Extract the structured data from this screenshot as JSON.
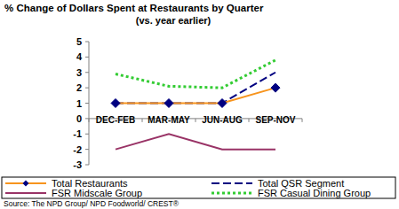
{
  "chart_data": {
    "type": "line",
    "title": "% Change of Dollars Spent at Restaurants by Quarter",
    "subtitle": "(vs. year earlier)",
    "source": "Source: The NPD Group/ NPD Foodworld/ CREST®",
    "categories": [
      "DEC-FEB",
      "MAR-MAY",
      "JUN-AUG",
      "SEP-NOV"
    ],
    "series": [
      {
        "name": "Total Restaurants",
        "color": "#f7941d",
        "values": [
          1,
          1,
          1,
          2
        ],
        "marker": "diamond",
        "line_style": "solid"
      },
      {
        "name": "Total QSR Segment",
        "color": "#000080",
        "values": [
          1,
          1,
          1,
          3
        ],
        "marker": "none",
        "line_style": "dashed"
      },
      {
        "name": "FSR Midscale Group",
        "color": "#993366",
        "values": [
          -2,
          -1,
          -2,
          -2
        ],
        "marker": "none",
        "line_style": "solid"
      },
      {
        "name": "FSR Casual Dining Group",
        "color": "#33cc33",
        "values": [
          2.9,
          2.1,
          2.0,
          3.8
        ],
        "marker": "none",
        "line_style": "dotted"
      }
    ],
    "ylim": [
      -3,
      5
    ],
    "yticks": [
      -3,
      -2,
      -1,
      0,
      1,
      2,
      3,
      4,
      5
    ],
    "grid": false,
    "legend": "bottom"
  }
}
